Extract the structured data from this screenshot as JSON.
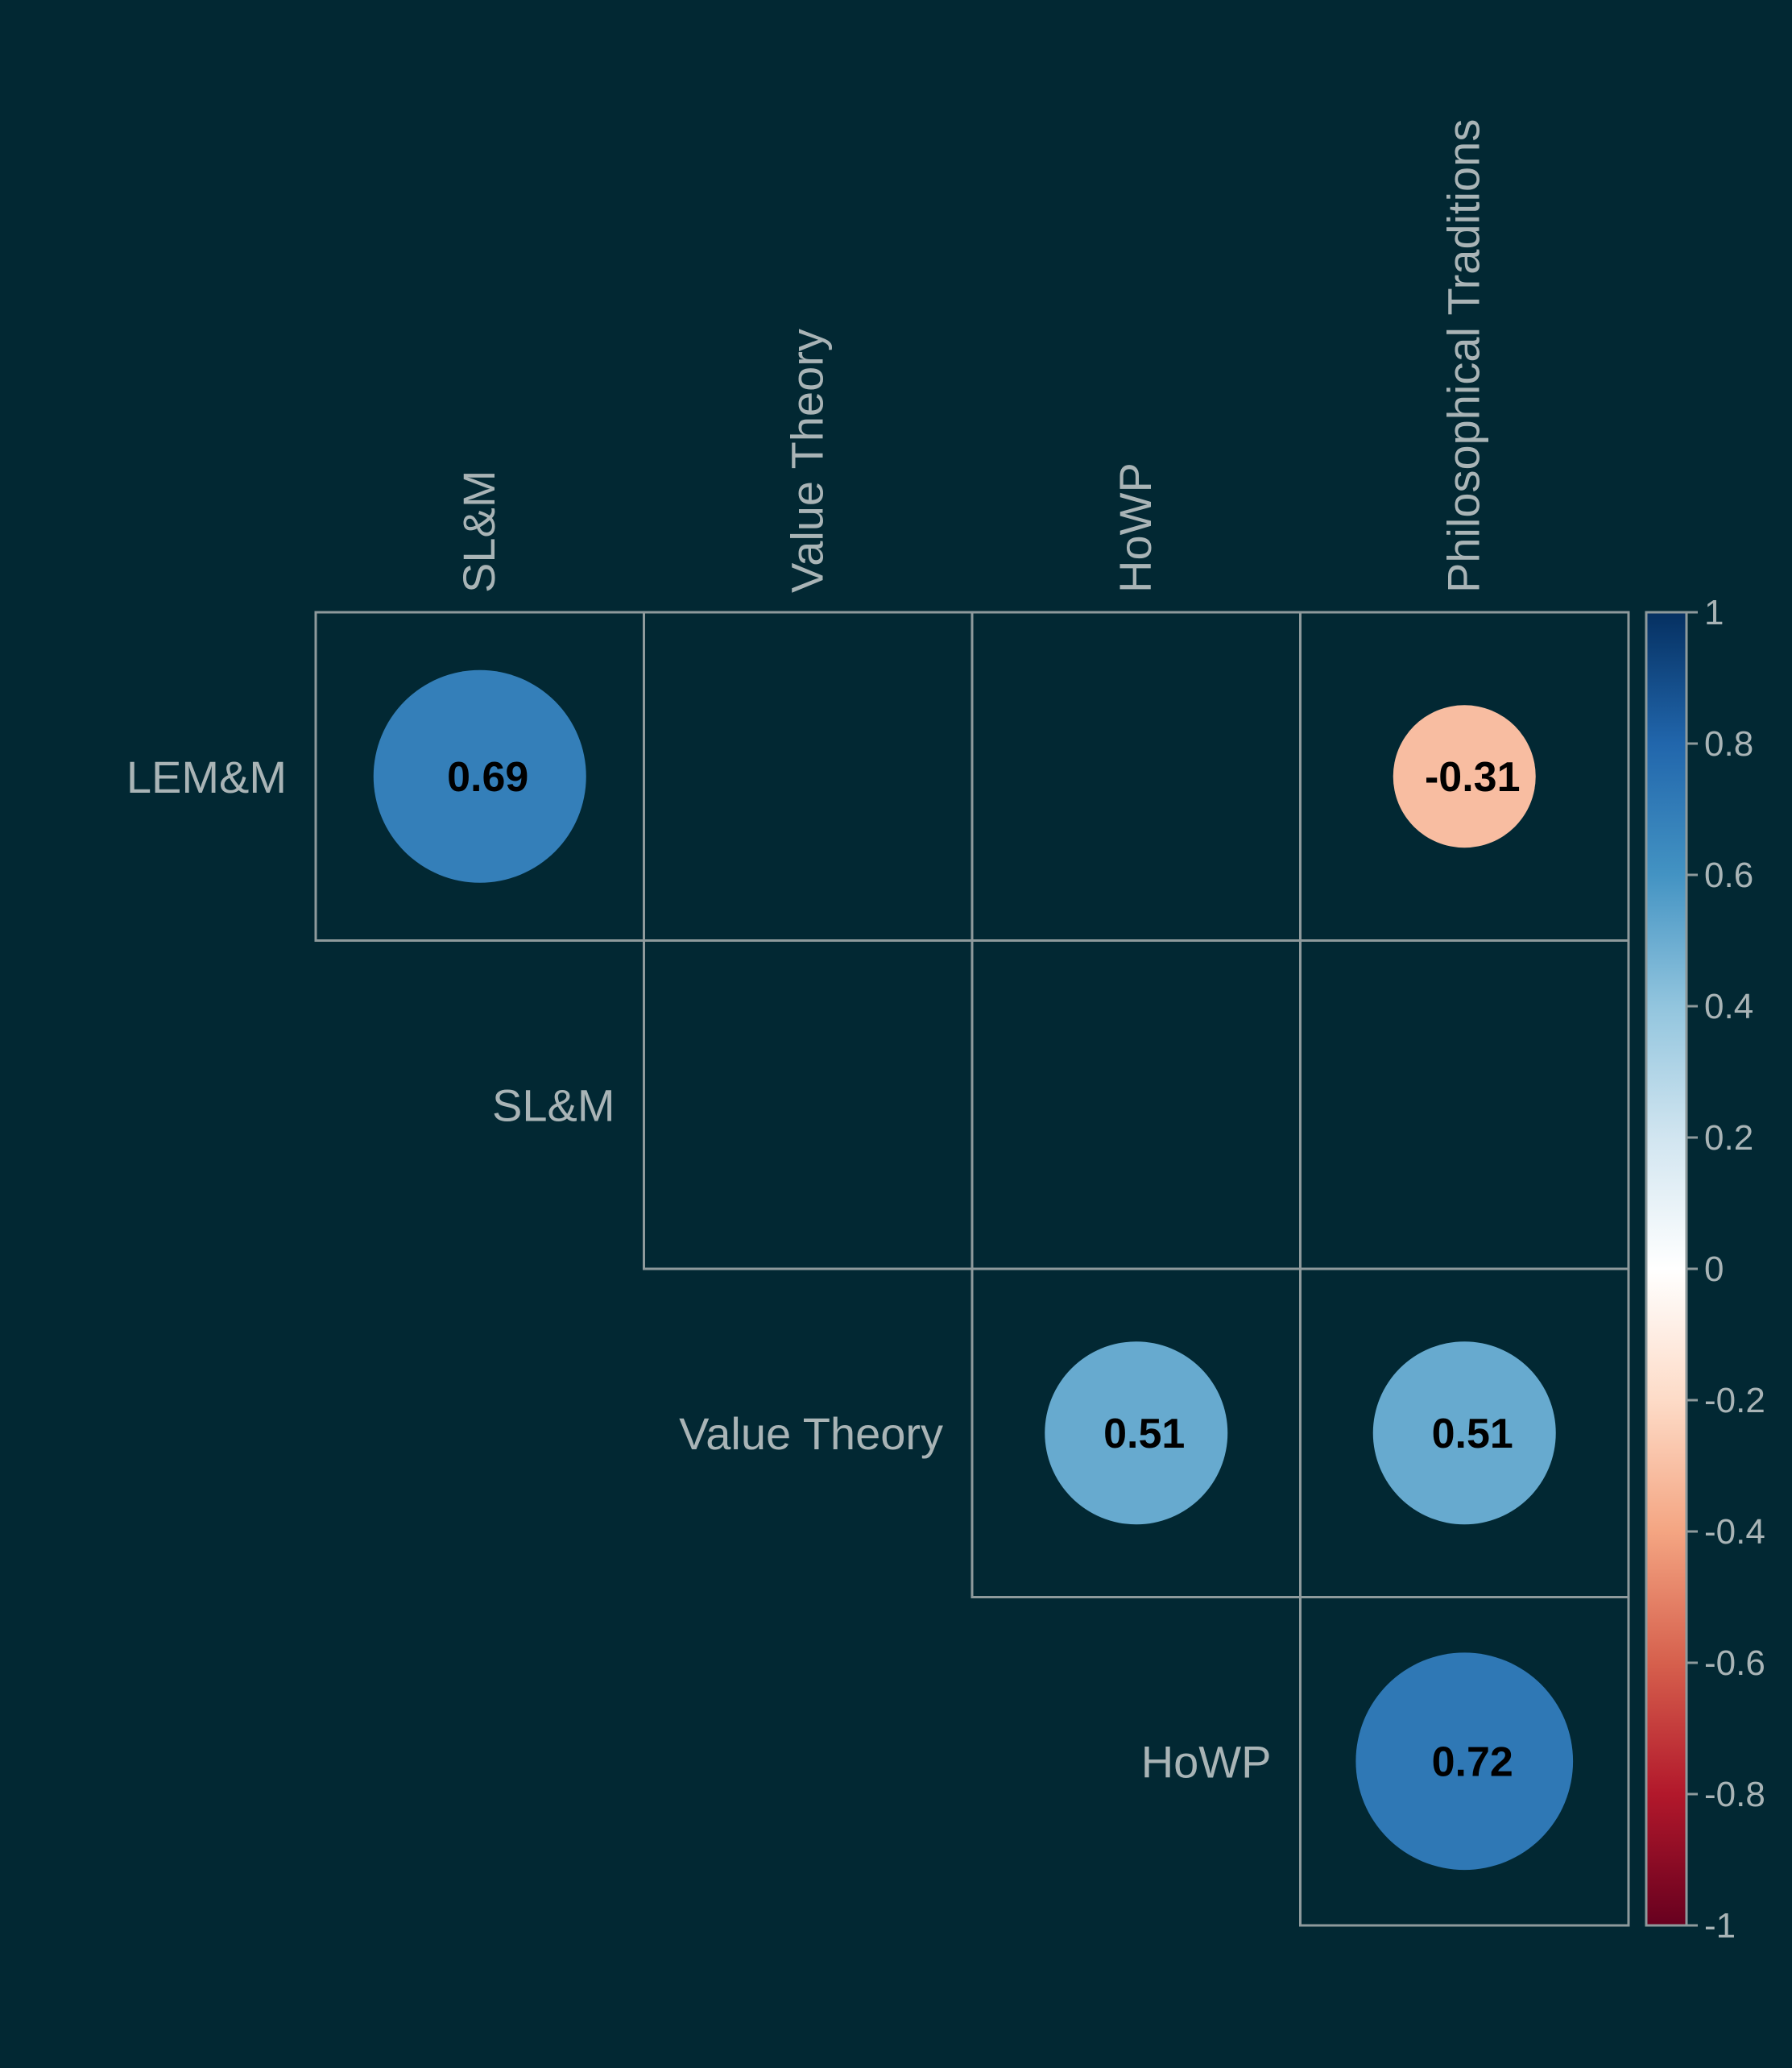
{
  "chart_data": {
    "type": "heatmap",
    "subtype": "correlation-circle-upper-triangle",
    "row_labels": [
      "LEM&M",
      "SL&M",
      "Value Theory",
      "HoWP"
    ],
    "col_labels": [
      "SL&M",
      "Value Theory",
      "HoWP",
      "Philosophical Traditions"
    ],
    "cells": [
      {
        "row": 0,
        "col": 0,
        "value": 0.69,
        "label": "0.69"
      },
      {
        "row": 0,
        "col": 3,
        "value": -0.31,
        "label": "-0.31"
      },
      {
        "row": 2,
        "col": 2,
        "value": 0.51,
        "label": "0.51"
      },
      {
        "row": 2,
        "col": 3,
        "value": 0.51,
        "label": "0.51"
      },
      {
        "row": 3,
        "col": 3,
        "value": 0.72,
        "label": "0.72"
      }
    ],
    "colorbar": {
      "range": [
        -1,
        1
      ],
      "ticks": [
        "1",
        "0.8",
        "0.6",
        "0.4",
        "0.2",
        "0",
        "-0.2",
        "-0.4",
        "-0.6",
        "-0.8",
        "-1"
      ],
      "colors": [
        "#053061",
        "#2166ac",
        "#4393c3",
        "#92c5de",
        "#d1e5f0",
        "#ffffff",
        "#fddbc7",
        "#f4a582",
        "#d6604d",
        "#b2182b",
        "#67001f"
      ]
    },
    "background": "#022833",
    "grid_color": "#8e9a9c",
    "label_color": "#a9b4b6"
  }
}
